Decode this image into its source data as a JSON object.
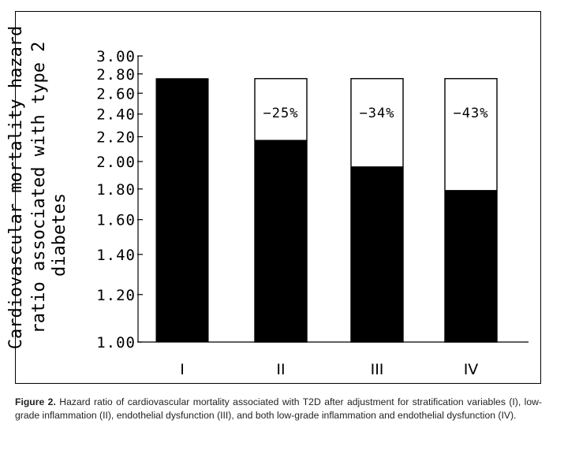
{
  "chart_data": {
    "type": "bar",
    "stacked_reference": true,
    "categories": [
      "I",
      "II",
      "III",
      "IV"
    ],
    "values": [
      2.75,
      2.17,
      1.96,
      1.79
    ],
    "reference_value": 2.75,
    "annotations": [
      "",
      "−25%",
      "−34%",
      "−43%"
    ],
    "ylabel": "Cardiovascular mortality hazard ratio associated with type 2 diabetes",
    "ylim": [
      1.0,
      3.0
    ],
    "y_scale": "log",
    "y_ticks": [
      1.0,
      1.2,
      1.4,
      1.6,
      1.8,
      2.0,
      2.2,
      2.4,
      2.6,
      2.8,
      3.0
    ],
    "y_tick_labels": [
      "1.00",
      "1.20",
      "1.40",
      "1.60",
      "1.80",
      "2.00",
      "2.20",
      "2.40",
      "2.60",
      "2.80",
      "3.00"
    ],
    "grid": false,
    "colors": {
      "bar_fill": "#000000",
      "reference_fill": "#ffffff",
      "axis": "#000000"
    }
  },
  "caption": {
    "label": "Figure 2.",
    "text": " Hazard ratio of cardiovascular mortality associated with T2D after adjustment for stratification variables (I), low-grade inflammation (II), endothelial dysfunction (III), and both low-grade inflammation and endothelial dysfunction (IV)."
  }
}
